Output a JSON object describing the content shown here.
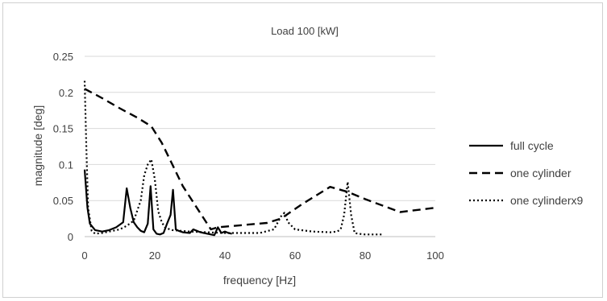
{
  "chart_data": {
    "type": "line",
    "title": "Load 100 [kW]",
    "xlabel": "frequency [Hz]",
    "ylabel": "magnitude [deg]",
    "xlim": [
      0,
      100
    ],
    "ylim": [
      0,
      0.25
    ],
    "xticks": [
      "0",
      "20",
      "40",
      "60",
      "80",
      "100"
    ],
    "yticks": [
      "0",
      "0.05",
      "0.1",
      "0.15",
      "0.2",
      "0.25"
    ],
    "grid": "horizontal",
    "legend_position": "right",
    "series": [
      {
        "name": "full cycle",
        "style": "solid",
        "color": "#000000",
        "x": [
          0,
          0.8,
          1.5,
          3,
          5,
          7,
          9,
          11,
          12,
          13,
          14,
          15,
          16,
          17,
          18,
          18.8,
          19.6,
          20.5,
          21.5,
          22.5,
          23.5,
          24.5,
          25.2,
          26,
          26.8,
          28,
          30,
          31,
          32,
          33,
          34,
          35,
          36,
          37,
          38,
          39,
          40,
          41,
          42
        ],
        "y": [
          0.093,
          0.04,
          0.018,
          0.009,
          0.007,
          0.009,
          0.013,
          0.02,
          0.067,
          0.04,
          0.02,
          0.013,
          0.008,
          0.006,
          0.018,
          0.07,
          0.01,
          0.004,
          0.003,
          0.005,
          0.018,
          0.03,
          0.065,
          0.01,
          0.008,
          0.006,
          0.005,
          0.01,
          0.008,
          0.006,
          0.005,
          0.004,
          0.003,
          0.002,
          0.013,
          0.005,
          0.007,
          0.005,
          0.004
        ]
      },
      {
        "name": "one cylinder",
        "style": "dashed",
        "color": "#000000",
        "x": [
          0,
          5,
          10,
          15,
          19,
          22,
          25,
          28,
          32,
          36,
          38,
          45,
          52,
          56,
          62,
          70,
          75,
          80,
          85,
          90,
          95,
          100
        ],
        "y": [
          0.205,
          0.192,
          0.178,
          0.165,
          0.153,
          0.13,
          0.1,
          0.07,
          0.04,
          0.01,
          0.013,
          0.016,
          0.019,
          0.025,
          0.045,
          0.069,
          0.062,
          0.052,
          0.043,
          0.034,
          0.037,
          0.04
        ]
      },
      {
        "name": "one cylinderx9",
        "style": "dotted",
        "color": "#000000",
        "x": [
          0,
          0.5,
          1,
          2,
          3,
          5,
          8,
          10,
          12,
          14,
          16,
          17,
          18,
          19,
          20,
          21,
          22,
          23,
          25,
          30,
          35,
          40,
          45,
          50,
          54,
          56,
          57,
          58,
          60,
          65,
          70,
          72,
          73,
          74,
          75,
          76,
          77,
          78,
          80,
          85
        ],
        "y": [
          0.216,
          0.12,
          0.04,
          0.008,
          0.004,
          0.005,
          0.008,
          0.01,
          0.015,
          0.022,
          0.05,
          0.085,
          0.1,
          0.107,
          0.08,
          0.035,
          0.02,
          0.012,
          0.009,
          0.007,
          0.006,
          0.005,
          0.005,
          0.005,
          0.01,
          0.028,
          0.033,
          0.02,
          0.01,
          0.007,
          0.006,
          0.007,
          0.01,
          0.03,
          0.076,
          0.03,
          0.005,
          0.004,
          0.003,
          0.003
        ]
      }
    ]
  }
}
